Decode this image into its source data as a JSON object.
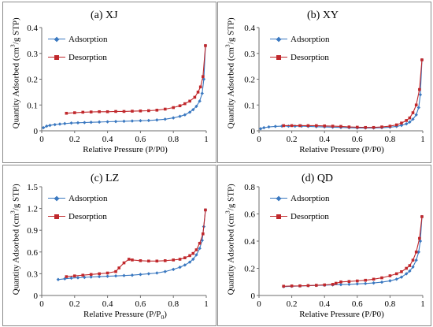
{
  "legend": {
    "ads": "Adsorption",
    "des": "Desorption"
  },
  "colors": {
    "ads": "#3a78c0",
    "des": "#c0282c",
    "axis": "#6e6e6e"
  },
  "chart_data": [
    {
      "id": "xj",
      "type": "line",
      "title": "(a) XJ",
      "xlabel": "Relative Pressure (P/P0)",
      "ylabel_pre": "Quantity Adsorbed (cm",
      "ylabel_sup": "3",
      "ylabel_post": "/g STP)",
      "xlim": [
        0,
        1
      ],
      "ylim": [
        0,
        0.4
      ],
      "xticks": [
        "0",
        "0.2",
        "0.4",
        "0.6",
        "0.8",
        "1"
      ],
      "yticks": [
        "0",
        "0.1",
        "0.2",
        "0.3",
        "0.4"
      ],
      "series": [
        {
          "name": "Adsorption",
          "x": [
            0.01,
            0.03,
            0.05,
            0.08,
            0.11,
            0.14,
            0.18,
            0.22,
            0.26,
            0.3,
            0.35,
            0.4,
            0.45,
            0.5,
            0.55,
            0.6,
            0.65,
            0.7,
            0.75,
            0.8,
            0.84,
            0.87,
            0.9,
            0.92,
            0.94,
            0.96,
            0.975,
            0.985,
            0.995
          ],
          "y": [
            0.012,
            0.018,
            0.021,
            0.024,
            0.026,
            0.028,
            0.03,
            0.031,
            0.032,
            0.033,
            0.034,
            0.035,
            0.036,
            0.037,
            0.038,
            0.039,
            0.04,
            0.042,
            0.045,
            0.05,
            0.056,
            0.062,
            0.072,
            0.082,
            0.095,
            0.115,
            0.145,
            0.2,
            0.33
          ]
        },
        {
          "name": "Desorption",
          "x": [
            0.995,
            0.98,
            0.965,
            0.95,
            0.93,
            0.9,
            0.87,
            0.84,
            0.8,
            0.75,
            0.7,
            0.65,
            0.6,
            0.55,
            0.5,
            0.45,
            0.4,
            0.35,
            0.3,
            0.25,
            0.2,
            0.15
          ],
          "y": [
            0.33,
            0.21,
            0.17,
            0.15,
            0.13,
            0.115,
            0.105,
            0.097,
            0.09,
            0.084,
            0.08,
            0.078,
            0.077,
            0.076,
            0.075,
            0.075,
            0.074,
            0.074,
            0.073,
            0.072,
            0.07,
            0.068
          ]
        }
      ]
    },
    {
      "id": "xy",
      "type": "line",
      "title": "(b) XY",
      "xlabel": "Relative Pressure (P/P0)",
      "ylabel_pre": "Quantity Adsorbed (cm",
      "ylabel_sup": "3",
      "ylabel_post": "/g STP)",
      "xlim": [
        0,
        1
      ],
      "ylim": [
        0,
        0.4
      ],
      "xticks": [
        "0",
        "0.2",
        "0.4",
        "0.6",
        "0.8",
        "1"
      ],
      "yticks": [
        "0",
        "0.1",
        "0.2",
        "0.3",
        "0.4"
      ],
      "series": [
        {
          "name": "Adsorption",
          "x": [
            0.01,
            0.03,
            0.06,
            0.1,
            0.14,
            0.18,
            0.22,
            0.26,
            0.3,
            0.35,
            0.4,
            0.45,
            0.5,
            0.55,
            0.6,
            0.65,
            0.7,
            0.75,
            0.8,
            0.84,
            0.87,
            0.9,
            0.92,
            0.94,
            0.96,
            0.975,
            0.985,
            0.995
          ],
          "y": [
            0.008,
            0.012,
            0.015,
            0.017,
            0.018,
            0.018,
            0.018,
            0.018,
            0.017,
            0.016,
            0.015,
            0.014,
            0.013,
            0.012,
            0.011,
            0.011,
            0.011,
            0.012,
            0.014,
            0.017,
            0.021,
            0.027,
            0.034,
            0.045,
            0.062,
            0.09,
            0.14,
            0.275
          ]
        },
        {
          "name": "Desorption",
          "x": [
            0.995,
            0.98,
            0.96,
            0.94,
            0.92,
            0.9,
            0.87,
            0.84,
            0.8,
            0.75,
            0.7,
            0.65,
            0.6,
            0.55,
            0.5,
            0.45,
            0.4,
            0.35,
            0.3,
            0.25,
            0.2,
            0.15
          ],
          "y": [
            0.275,
            0.16,
            0.1,
            0.07,
            0.05,
            0.04,
            0.03,
            0.023,
            0.018,
            0.015,
            0.013,
            0.013,
            0.014,
            0.015,
            0.017,
            0.018,
            0.019,
            0.02,
            0.02,
            0.02,
            0.02,
            0.02
          ]
        }
      ]
    },
    {
      "id": "lz",
      "type": "line",
      "title": "(c) LZ",
      "xlabel_pre": "Relative Pressure (P/P",
      "xlabel_sub": "0",
      "xlabel_post": ")",
      "ylabel_pre": "Quantity Adsorbed (cm",
      "ylabel_sup": "3",
      "ylabel_post": "/g STP)",
      "xlim": [
        0,
        1
      ],
      "ylim": [
        0,
        1.5
      ],
      "xticks": [
        "0",
        "0.2",
        "0.4",
        "0.6",
        "0.8",
        "1"
      ],
      "yticks": [
        "0",
        "0.3",
        "0.6",
        "0.9",
        "1.2",
        "1.5"
      ],
      "series": [
        {
          "name": "Adsorption",
          "x": [
            0.1,
            0.14,
            0.18,
            0.22,
            0.26,
            0.3,
            0.35,
            0.4,
            0.45,
            0.5,
            0.55,
            0.6,
            0.65,
            0.7,
            0.75,
            0.8,
            0.84,
            0.87,
            0.9,
            0.92,
            0.94,
            0.96,
            0.975,
            0.985,
            0.995
          ],
          "y": [
            0.22,
            0.23,
            0.24,
            0.245,
            0.25,
            0.255,
            0.26,
            0.265,
            0.27,
            0.275,
            0.28,
            0.29,
            0.3,
            0.31,
            0.33,
            0.36,
            0.39,
            0.42,
            0.46,
            0.5,
            0.56,
            0.65,
            0.76,
            0.95,
            1.18
          ]
        },
        {
          "name": "Desorption",
          "x": [
            0.995,
            0.98,
            0.96,
            0.94,
            0.92,
            0.9,
            0.87,
            0.84,
            0.8,
            0.75,
            0.7,
            0.65,
            0.6,
            0.55,
            0.53,
            0.5,
            0.47,
            0.45,
            0.4,
            0.35,
            0.3,
            0.25,
            0.2,
            0.15
          ],
          "y": [
            1.18,
            0.85,
            0.72,
            0.63,
            0.58,
            0.55,
            0.52,
            0.5,
            0.49,
            0.48,
            0.475,
            0.475,
            0.48,
            0.49,
            0.5,
            0.45,
            0.38,
            0.33,
            0.31,
            0.3,
            0.29,
            0.28,
            0.27,
            0.26
          ]
        }
      ]
    },
    {
      "id": "qd",
      "type": "line",
      "title": "(d) QD",
      "xlabel": "Relative Pressure (P/P0)",
      "ylabel_pre": "Quantity Adsorbed (cm",
      "ylabel_sup": "3",
      "ylabel_post": "/g STP)",
      "xlim": [
        0,
        1
      ],
      "ylim": [
        0,
        0.8
      ],
      "xticks": [
        "0",
        "0.2",
        "0.4",
        "0.6",
        "0.8",
        "1"
      ],
      "yticks": [
        "0",
        "0.2",
        "0.4",
        "0.6",
        "0.8"
      ],
      "series": [
        {
          "name": "Adsorption",
          "x": [
            0.15,
            0.2,
            0.25,
            0.3,
            0.35,
            0.4,
            0.45,
            0.5,
            0.55,
            0.6,
            0.65,
            0.7,
            0.75,
            0.8,
            0.84,
            0.87,
            0.9,
            0.92,
            0.94,
            0.96,
            0.975,
            0.985,
            0.995
          ],
          "y": [
            0.065,
            0.068,
            0.07,
            0.072,
            0.074,
            0.076,
            0.078,
            0.08,
            0.082,
            0.085,
            0.088,
            0.092,
            0.098,
            0.108,
            0.12,
            0.135,
            0.16,
            0.18,
            0.21,
            0.26,
            0.32,
            0.4,
            0.58
          ]
        },
        {
          "name": "Desorption",
          "x": [
            0.995,
            0.98,
            0.96,
            0.94,
            0.92,
            0.9,
            0.87,
            0.84,
            0.8,
            0.75,
            0.7,
            0.65,
            0.6,
            0.55,
            0.5,
            0.47,
            0.45,
            0.4,
            0.35,
            0.3,
            0.25,
            0.2,
            0.15
          ],
          "y": [
            0.58,
            0.42,
            0.32,
            0.26,
            0.22,
            0.2,
            0.175,
            0.16,
            0.145,
            0.13,
            0.12,
            0.112,
            0.107,
            0.103,
            0.1,
            0.09,
            0.082,
            0.078,
            0.075,
            0.073,
            0.071,
            0.07,
            0.068
          ]
        }
      ]
    }
  ]
}
